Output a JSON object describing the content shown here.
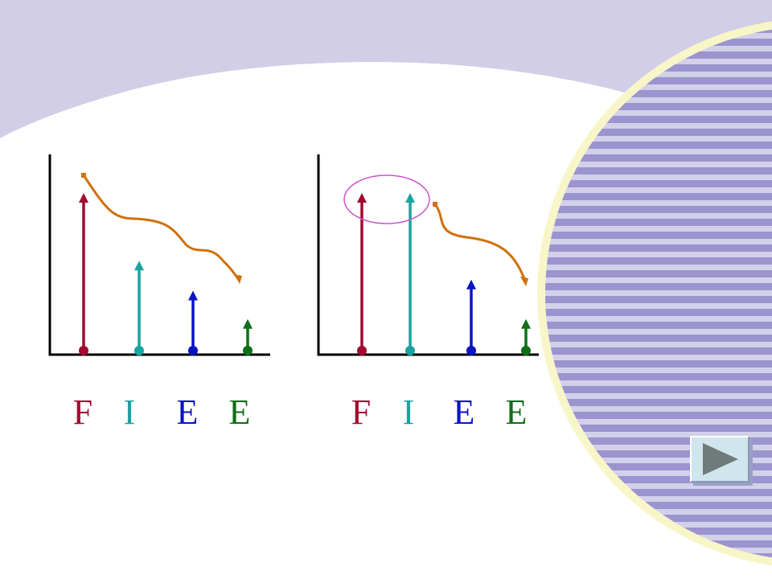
{
  "colors": {
    "band": "#d2cee7",
    "stripe_dark": "#9b94cf",
    "stripe_light": "#d3d0ea",
    "rim": "#f8f6c8",
    "axis": "#000000",
    "curve": "#d0700c",
    "ellipse": "#cc55cc",
    "button_face": "#cfe6ec",
    "button_arrow": "#707a7a"
  },
  "diagrams": [
    {
      "bars": [
        {
          "label": "F",
          "color": "#a10b30",
          "height": 1.0
        },
        {
          "label": "I",
          "color": "#1aa3a0",
          "height": 0.57
        },
        {
          "label": "E",
          "color": "#0a14c2",
          "height": 0.38
        },
        {
          "label": "E",
          "color": "#0f6e17",
          "height": 0.2
        }
      ],
      "trend": "decreasing",
      "highlight": null
    },
    {
      "bars": [
        {
          "label": "F",
          "color": "#a10b30",
          "height": 1.0
        },
        {
          "label": "I",
          "color": "#1aa3a0",
          "height": 1.0
        },
        {
          "label": "E",
          "color": "#0a14c2",
          "height": 0.45
        },
        {
          "label": "E",
          "color": "#0f6e17",
          "height": 0.2
        }
      ],
      "trend": "decreasing",
      "highlight": "F, I"
    }
  ],
  "next_button": {
    "icon": "play-arrow-icon"
  }
}
